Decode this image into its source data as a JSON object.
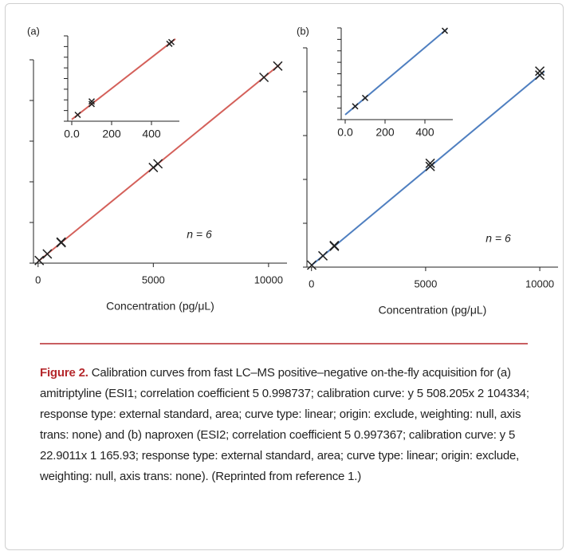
{
  "chart_data": [
    {
      "type": "scatter",
      "panel_label": "(a)",
      "xlabel": "Concentration (pg/μL)",
      "annotation": "n = 6",
      "x": [
        50,
        400,
        1000,
        1000,
        5000,
        5200,
        9800,
        10400
      ],
      "series": [
        {
          "color": "#222222",
          "values": [
            -79000,
            99000,
            404000,
            420000,
            2437000,
            2538000,
            4876000,
            5181000
          ]
        }
      ],
      "fit": {
        "color": "#d4605a",
        "x": [
          0,
          10500
        ],
        "y": [
          -104334,
          5231818
        ]
      },
      "xlim": [
        -200,
        10800
      ],
      "ylim": [
        -150000,
        5350000
      ],
      "xticks": [
        0,
        5000,
        10000
      ],
      "inset": {
        "type": "scatter",
        "x": [
          30,
          100,
          100,
          490,
          500
        ],
        "series": [
          {
            "color": "#222222",
            "values": [
              -89000,
              -53500,
              -45000,
              144000,
              149800
            ]
          }
        ],
        "fit": {
          "color": "#d4605a",
          "x": [
            0,
            520
          ],
          "y": [
            -104334,
            159933
          ]
        },
        "xlim": [
          -20,
          540
        ],
        "ylim": [
          -110000,
          170000
        ],
        "xticks": [
          {
            "value": 0,
            "label": "0.0"
          },
          200,
          400
        ]
      }
    },
    {
      "type": "scatter",
      "panel_label": "(b)",
      "xlabel": "Concentration (pg/μL)",
      "annotation": "n = 6",
      "x": [
        10,
        500,
        1000,
        1000,
        5200,
        5200,
        10000,
        10000
      ],
      "series": [
        {
          "color": "#222222",
          "values": [
            395,
            11616,
            23067,
            24000,
            119252,
            123000,
            229177,
            234000
          ]
        }
      ],
      "fit": {
        "color": "#4f7fc0",
        "x": [
          0,
          10200
        ],
        "y": [
          166,
          233757
        ]
      },
      "xlim": [
        -200,
        10800
      ],
      "ylim": [
        -2000,
        262000
      ],
      "xticks": [
        0,
        5000,
        10000
      ],
      "inset": {
        "type": "scatter",
        "x": [
          50,
          100,
          500
        ],
        "series": [
          {
            "color": "#222222",
            "values": [
              1311,
              2456,
              11616
            ]
          }
        ],
        "fit": {
          "color": "#4f7fc0",
          "x": [
            0,
            510
          ],
          "y": [
            166,
            11846
          ]
        },
        "xlim": [
          -20,
          540
        ],
        "ylim": [
          -500,
          12000
        ],
        "xticks": [
          {
            "value": 0,
            "label": "0.0"
          },
          200,
          400
        ]
      }
    }
  ],
  "caption": {
    "label": "Figure 2.",
    "text": "Calibration curves from fast LC–MS positive–negative on-the-fly acquisition for (a) amitriptyline (ESI1; correlation coefficient 5 0.998737; calibration curve: y 5 508.205x 2 104334; response type: external standard, area; curve type: linear; origin: exclude, weighting: null, axis trans: none) and (b) naproxen (ESI2; correlation coefficient 5 0.997367; calibration curve: y 5 22.9011x 1 165.93; response type: external standard, area; curve type: linear; origin: exclude, weighting: null, axis trans: none). (Reprinted from reference 1.)"
  }
}
